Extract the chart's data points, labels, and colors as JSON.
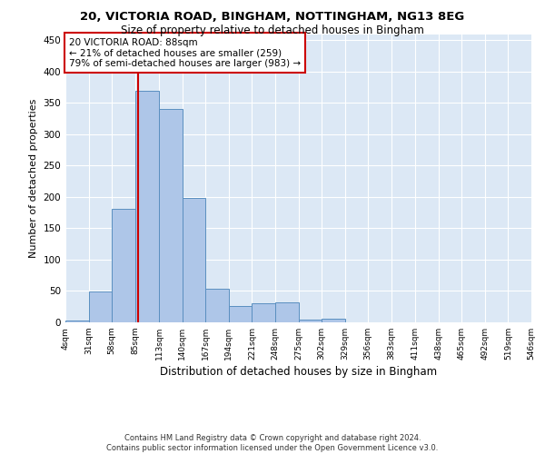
{
  "title_line1": "20, VICTORIA ROAD, BINGHAM, NOTTINGHAM, NG13 8EG",
  "title_line2": "Size of property relative to detached houses in Bingham",
  "xlabel": "Distribution of detached houses by size in Bingham",
  "ylabel": "Number of detached properties",
  "bin_labels": [
    "4sqm",
    "31sqm",
    "58sqm",
    "85sqm",
    "113sqm",
    "140sqm",
    "167sqm",
    "194sqm",
    "221sqm",
    "248sqm",
    "275sqm",
    "302sqm",
    "329sqm",
    "356sqm",
    "383sqm",
    "411sqm",
    "438sqm",
    "465sqm",
    "492sqm",
    "519sqm",
    "546sqm"
  ],
  "bin_edges": [
    4,
    31,
    58,
    85,
    113,
    140,
    167,
    194,
    221,
    248,
    275,
    302,
    329,
    356,
    383,
    411,
    438,
    465,
    492,
    519,
    546
  ],
  "bar_heights": [
    3,
    49,
    181,
    370,
    340,
    199,
    54,
    26,
    31,
    32,
    5,
    6,
    0,
    0,
    0,
    0,
    0,
    0,
    0,
    0
  ],
  "bar_color": "#aec6e8",
  "bar_edge_color": "#5a8fc0",
  "vline_x": 88,
  "vline_color": "#cc0000",
  "annotation_text": "20 VICTORIA ROAD: 88sqm\n← 21% of detached houses are smaller (259)\n79% of semi-detached houses are larger (983) →",
  "annotation_box_color": "#ffffff",
  "annotation_box_edge": "#cc0000",
  "ylim": [
    0,
    460
  ],
  "yticks": [
    0,
    50,
    100,
    150,
    200,
    250,
    300,
    350,
    400,
    450
  ],
  "bg_color": "#dce8f5",
  "grid_color": "#ffffff",
  "footer_line1": "Contains HM Land Registry data © Crown copyright and database right 2024.",
  "footer_line2": "Contains public sector information licensed under the Open Government Licence v3.0."
}
